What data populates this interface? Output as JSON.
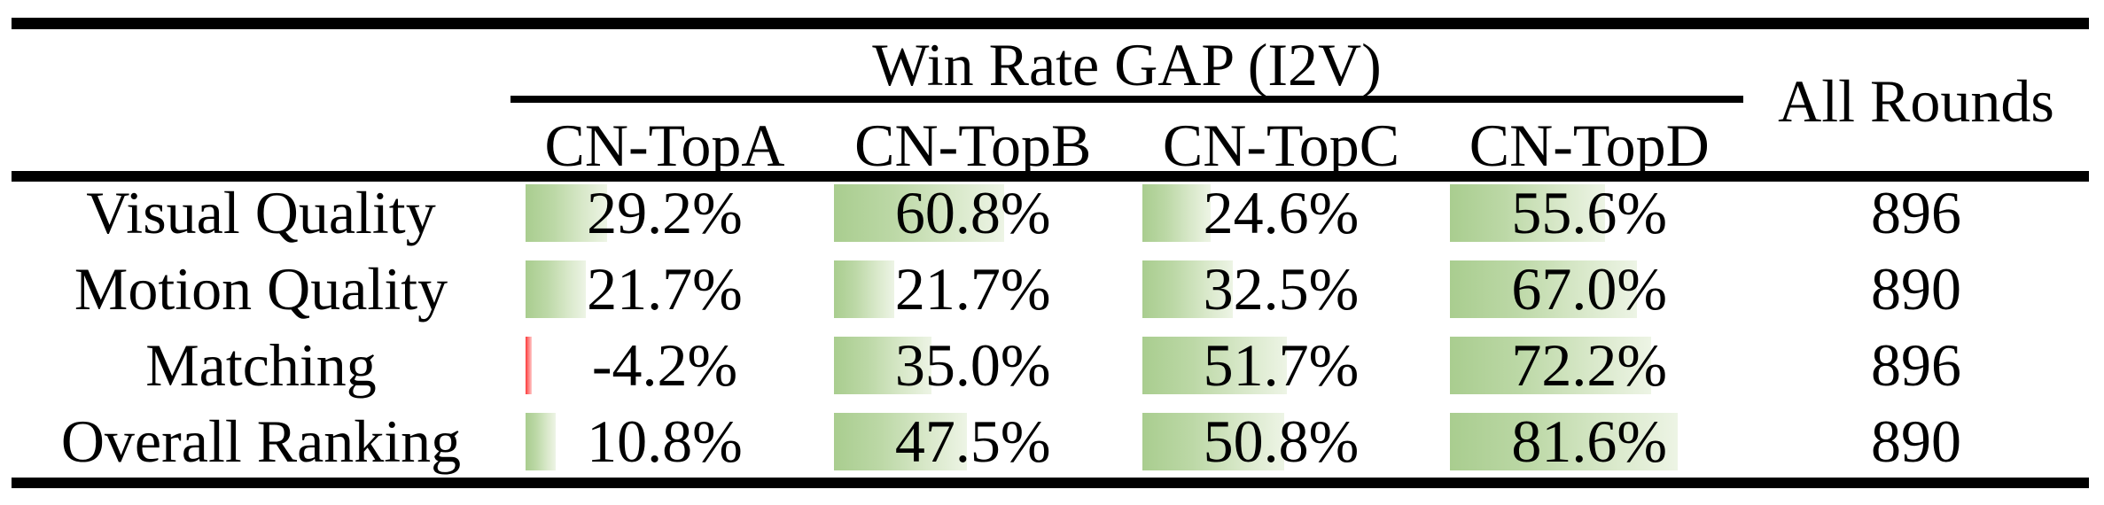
{
  "table": {
    "group_header": "Win Rate GAP (I2V)",
    "all_rounds_header": "All Rounds",
    "columns": [
      "CN-TopA",
      "CN-TopB",
      "CN-TopC",
      "CN-TopD"
    ],
    "rows": [
      {
        "label": "Visual Quality",
        "values": [
          "29.2%",
          "60.8%",
          "24.6%",
          "55.6%"
        ],
        "all_rounds": "896"
      },
      {
        "label": "Motion Quality",
        "values": [
          "21.7%",
          "21.7%",
          "32.5%",
          "67.0%"
        ],
        "all_rounds": "890"
      },
      {
        "label": "Matching",
        "values": [
          "-4.2%",
          "35.0%",
          "51.7%",
          "72.2%"
        ],
        "all_rounds": "896"
      },
      {
        "label": "Overall Ranking",
        "values": [
          "10.8%",
          "47.5%",
          "50.8%",
          "81.6%"
        ],
        "all_rounds": "890"
      }
    ],
    "colors": {
      "positive_bar": "#a9cd8f",
      "positive_bar_fade": "#edf4e5",
      "negative_bar": "#fb3a3a",
      "rule": "#000000",
      "text": "#000000",
      "background": "#ffffff"
    }
  },
  "chart_data": {
    "type": "table",
    "title": "Win Rate GAP (I2V)",
    "row_labels": [
      "Visual Quality",
      "Motion Quality",
      "Matching",
      "Overall Ranking"
    ],
    "series": [
      {
        "name": "CN-TopA",
        "values": [
          29.2,
          21.7,
          -4.2,
          10.8
        ]
      },
      {
        "name": "CN-TopB",
        "values": [
          60.8,
          21.7,
          35.0,
          47.5
        ]
      },
      {
        "name": "CN-TopC",
        "values": [
          24.6,
          32.5,
          51.7,
          50.8
        ]
      },
      {
        "name": "CN-TopD",
        "values": [
          55.6,
          67.0,
          72.2,
          81.6
        ]
      }
    ],
    "all_rounds": [
      896,
      890,
      896,
      890
    ],
    "unit": "%",
    "bar_style": "in-cell data bars, green positive / red negative, length proportional to value"
  }
}
